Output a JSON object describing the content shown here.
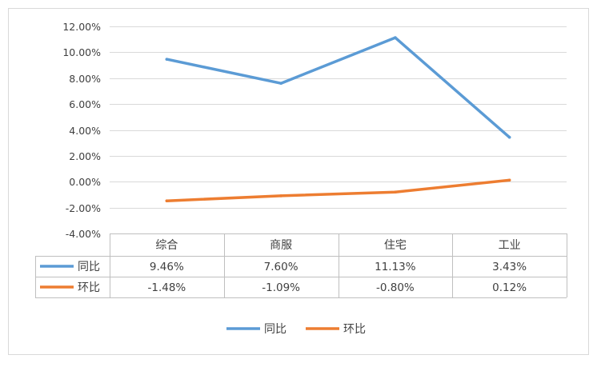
{
  "chart_data": {
    "type": "line",
    "categories": [
      "综合",
      "商服",
      "住宅",
      "工业"
    ],
    "series": [
      {
        "name": "同比",
        "values": [
          9.46,
          7.6,
          11.13,
          3.43
        ],
        "labels": [
          "9.46%",
          "7.60%",
          "11.13%",
          "3.43%"
        ],
        "color": "#5b9bd5"
      },
      {
        "name": "环比",
        "values": [
          -1.48,
          -1.09,
          -0.8,
          0.12
        ],
        "labels": [
          "-1.48%",
          "-1.09%",
          "-0.80%",
          "0.12%"
        ],
        "color": "#ed7d31"
      }
    ],
    "ylim": [
      -4,
      12
    ],
    "yticks": [
      "12.00%",
      "10.00%",
      "8.00%",
      "6.00%",
      "4.00%",
      "2.00%",
      "0.00%",
      "-2.00%",
      "-4.00%"
    ],
    "grid": true,
    "legend": "bottom",
    "data_table": true
  }
}
